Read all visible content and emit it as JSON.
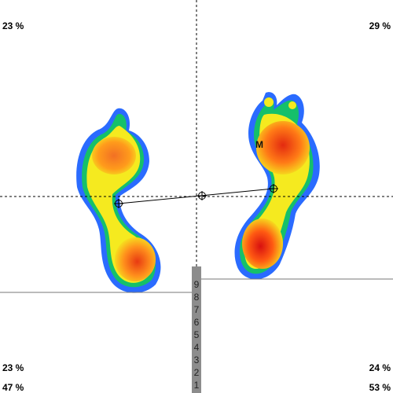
{
  "pressure_view": {
    "percentages": {
      "top_left": "23 %",
      "top_right": "29 %",
      "bottom_left": "23 %",
      "bottom_right": "24 %",
      "left_total": "47 %",
      "right_total": "53 %"
    },
    "marker_label": "M",
    "scale_ticks": [
      "9",
      "8",
      "7",
      "6",
      "5",
      "4",
      "3",
      "2",
      "1"
    ],
    "colors": {
      "low": "#1e5cff",
      "mid_low": "#10c070",
      "mid": "#f6ef1c",
      "mid_high": "#ff9a1a",
      "high": "#ff3b12",
      "peak": "#e01010",
      "scale_bar": "#8c8c8c"
    }
  }
}
